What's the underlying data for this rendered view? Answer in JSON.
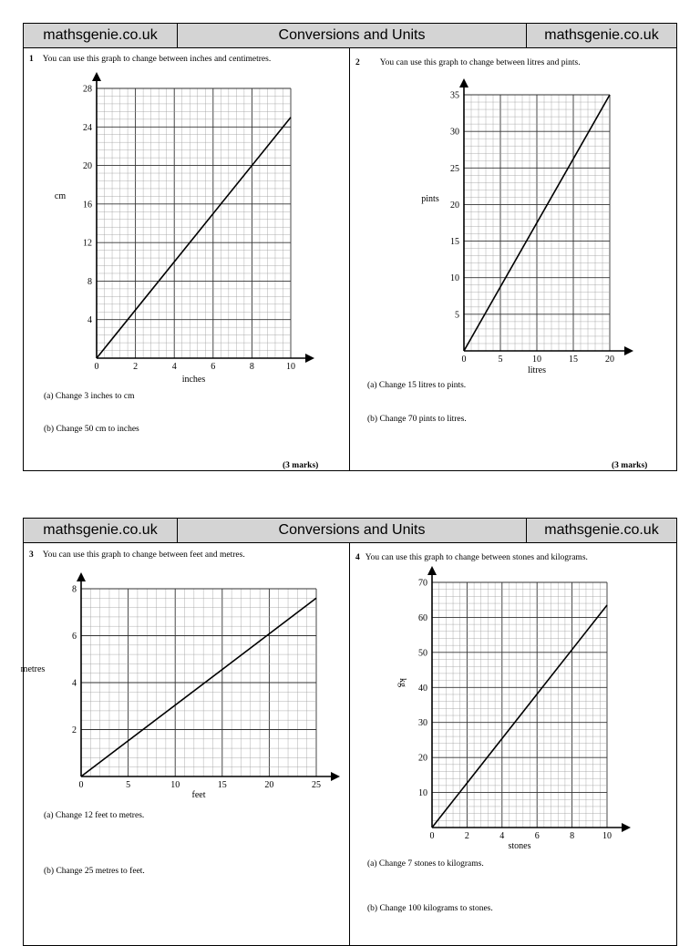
{
  "header": {
    "left": "mathsgenie.co.uk",
    "center": "Conversions and Units",
    "right": "mathsgenie.co.uk"
  },
  "questions": [
    {
      "number": "1",
      "prompt": "You can use this graph to change between inches and centimetres.",
      "a": "(a)  Change 3 inches to cm",
      "b": "(b) Change 50 cm to inches",
      "marks": "(3 marks)"
    },
    {
      "number": "2",
      "prompt": "You can use this graph to change between litres and pints.",
      "a": "(a)  Change 15 litres to pints.",
      "b": "(b) Change 70 pints to litres.",
      "marks": "(3 marks)"
    },
    {
      "number": "3",
      "prompt": "You can use this graph to change between feet and metres.",
      "a": "(a)  Change 12 feet to metres.",
      "b": "(b) Change 25 metres to feet."
    },
    {
      "number": "4",
      "prompt": "You can use this graph to change between stones and kilograms.",
      "a": "(a)  Change 7 stones to kilograms.",
      "b": "(b) Change 100 kilograms to stones."
    }
  ],
  "chart_data": [
    {
      "type": "line",
      "xlabel": "inches",
      "ylabel": "cm",
      "xlim": [
        0,
        10
      ],
      "ylim": [
        0,
        28
      ],
      "x_ticks": [
        0,
        2,
        4,
        6,
        8,
        10
      ],
      "y_ticks": [
        4,
        8,
        12,
        16,
        20,
        24,
        28
      ],
      "x_minor": 0.4,
      "y_minor": 0.8,
      "x_major": 2,
      "y_major": 4,
      "series": [
        {
          "x": [
            0,
            10
          ],
          "y": [
            0,
            25
          ]
        }
      ],
      "grid": true
    },
    {
      "type": "line",
      "xlabel": "litres",
      "ylabel": "pints",
      "xlim": [
        0,
        20
      ],
      "ylim": [
        0,
        35
      ],
      "x_ticks": [
        0,
        5,
        10,
        15,
        20
      ],
      "y_ticks": [
        5,
        10,
        15,
        20,
        25,
        30,
        35
      ],
      "x_minor": 1,
      "y_minor": 1,
      "x_major": 5,
      "y_major": 5,
      "series": [
        {
          "x": [
            0,
            20
          ],
          "y": [
            0,
            35
          ]
        }
      ],
      "grid": true
    },
    {
      "type": "line",
      "xlabel": "feet",
      "ylabel": "metres",
      "xlim": [
        0,
        25
      ],
      "ylim": [
        0,
        8
      ],
      "x_ticks": [
        0,
        5,
        10,
        15,
        20,
        25
      ],
      "y_ticks": [
        2,
        4,
        6,
        8
      ],
      "x_minor": 1,
      "y_minor": 0.4,
      "x_major": 5,
      "y_major": 2,
      "series": [
        {
          "x": [
            0,
            25
          ],
          "y": [
            0,
            7.6
          ]
        }
      ],
      "grid": true
    },
    {
      "type": "line",
      "xlabel": "stones",
      "ylabel": "kg",
      "xlim": [
        0,
        10
      ],
      "ylim": [
        0,
        70
      ],
      "x_ticks": [
        0,
        2,
        4,
        6,
        8,
        10
      ],
      "y_ticks": [
        10,
        20,
        30,
        40,
        50,
        60,
        70
      ],
      "x_minor": 0.4,
      "y_minor": 2,
      "x_major": 2,
      "y_major": 10,
      "series": [
        {
          "x": [
            0,
            10
          ],
          "y": [
            0,
            63.5
          ]
        }
      ],
      "grid": true
    }
  ]
}
